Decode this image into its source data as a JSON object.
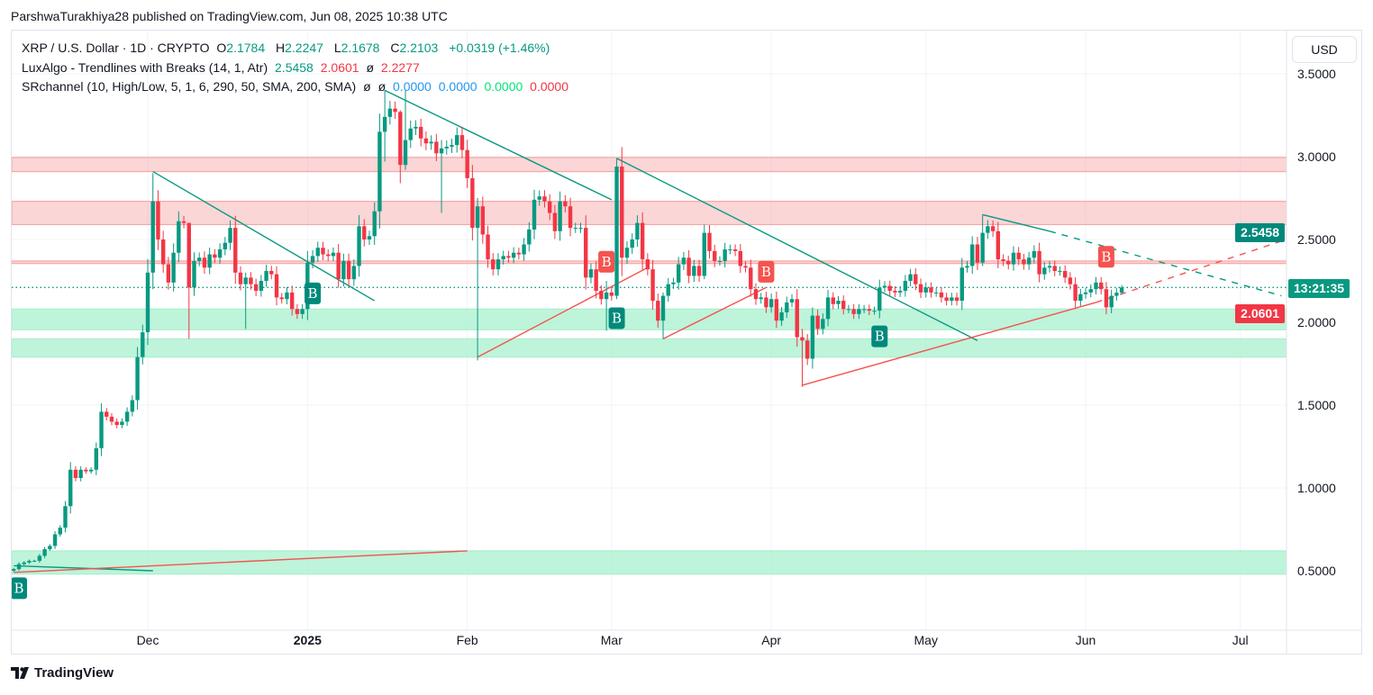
{
  "header": {
    "attribution": "ParshwaTurakhiya28 published on TradingView.com, Jun 08, 2025 10:38 UTC"
  },
  "legend": {
    "symbol": "XRP / U.S. Dollar · 1D · CRYPTO",
    "o_label": "O",
    "o": "2.1784",
    "h_label": "H",
    "h": "2.2247",
    "l_label": "L",
    "l": "2.1678",
    "c_label": "C",
    "c": "2.2103",
    "change": "+0.0319 (+1.46%)"
  },
  "indicators": [
    {
      "name": "LuxAlgo - Trendlines with Breaks (14, 1, Atr)",
      "values": [
        "2.5458",
        "2.0601",
        "ø",
        "2.2277"
      ]
    },
    {
      "name": "SRchannel (10, High/Low, 5, 1, 6, 290, 50, SMA, 200, SMA)",
      "values": [
        "ø",
        "ø",
        "0.0000",
        "0.0000",
        "0.0000",
        "0.0000"
      ]
    }
  ],
  "price_axis": {
    "currency_button": "USD",
    "upper_trendline_label": "2.5458",
    "countdown_label": "13:21:35",
    "lower_trendline_label": "2.0601"
  },
  "footer": {
    "brand": "TradingView"
  },
  "colors": {
    "bull": "#089981",
    "bear": "#f23645",
    "resistance_zone": "#f7a5a5",
    "support_zone": "#a8f0cd",
    "grid": "#f0f3fa",
    "upper_label": "#00897b"
  },
  "chart_data": {
    "type": "candlestick",
    "title": "XRP / U.S. Dollar · 1D · CRYPTO",
    "start_date": "2024-11-05",
    "first_open": 0.5,
    "close": [
      0.51,
      0.54,
      0.55,
      0.56,
      0.56,
      0.59,
      0.63,
      0.65,
      0.72,
      0.76,
      0.89,
      1.11,
      1.06,
      1.11,
      1.1,
      1.11,
      1.24,
      1.46,
      1.43,
      1.4,
      1.38,
      1.4,
      1.46,
      1.53,
      1.79,
      1.94,
      2.3,
      2.73,
      2.5,
      2.35,
      2.24,
      2.42,
      2.61,
      2.6,
      2.21,
      2.37,
      2.39,
      2.33,
      2.41,
      2.39,
      2.44,
      2.48,
      2.57,
      2.3,
      2.23,
      2.27,
      2.23,
      2.19,
      2.25,
      2.31,
      2.29,
      2.15,
      2.14,
      2.18,
      2.08,
      2.05,
      2.08,
      2.36,
      2.4,
      2.45,
      2.41,
      2.4,
      2.42,
      2.26,
      2.37,
      2.26,
      2.34,
      2.58,
      2.5,
      2.52,
      2.67,
      3.15,
      3.24,
      3.29,
      3.27,
      2.95,
      3.1,
      3.17,
      3.18,
      3.11,
      3.08,
      3.09,
      3.02,
      3.05,
      3.06,
      3.07,
      3.13,
      3.04,
      2.87,
      2.57,
      2.7,
      2.53,
      2.38,
      2.32,
      2.38,
      2.4,
      2.39,
      2.42,
      2.41,
      2.47,
      2.56,
      2.74,
      2.76,
      2.73,
      2.66,
      2.55,
      2.73,
      2.7,
      2.57,
      2.57,
      2.57,
      2.27,
      2.32,
      2.19,
      2.14,
      2.18,
      2.16,
      2.94,
      2.39,
      2.45,
      2.5,
      2.6,
      2.38,
      2.32,
      2.13,
      2.01,
      2.16,
      2.23,
      2.24,
      2.35,
      2.39,
      2.28,
      2.34,
      2.28,
      2.54,
      2.43,
      2.37,
      2.37,
      2.44,
      2.44,
      2.43,
      2.34,
      2.33,
      2.2,
      2.14,
      2.15,
      2.09,
      2.14,
      2.01,
      2.06,
      2.12,
      2.14,
      1.91,
      1.89,
      1.78,
      2.04,
      1.96,
      2.02,
      2.15,
      2.11,
      2.13,
      2.08,
      2.08,
      2.05,
      2.08,
      2.08,
      2.07,
      2.07,
      2.21,
      2.22,
      2.19,
      2.18,
      2.19,
      2.25,
      2.29,
      2.23,
      2.18,
      2.21,
      2.18,
      2.18,
      2.15,
      2.13,
      2.15,
      2.13,
      2.33,
      2.34,
      2.47,
      2.36,
      2.54,
      2.58,
      2.55,
      2.38,
      2.37,
      2.35,
      2.42,
      2.38,
      2.35,
      2.39,
      2.43,
      2.29,
      2.33,
      2.34,
      2.31,
      2.31,
      2.27,
      2.23,
      2.13,
      2.17,
      2.18,
      2.2,
      2.24,
      2.2,
      2.09,
      2.16,
      2.1784,
      2.2103
    ],
    "wick_extremes": {
      "2024-12-02": [
        2.9,
        2.2
      ],
      "2024-12-09": [
        2.6,
        1.9
      ],
      "2024-12-20": [
        2.3,
        1.96
      ],
      "2025-01-16": [
        3.4,
        2.97
      ],
      "2025-01-19": [
        3.28,
        2.84
      ],
      "2025-01-20": [
        3.4,
        2.92
      ],
      "2025-01-27": [
        3.1,
        2.66
      ],
      "2025-02-03": [
        2.75,
        1.77
      ],
      "2025-02-28": [
        2.25,
        1.95
      ],
      "2025-03-02": [
        2.99,
        2.14
      ],
      "2025-03-11": [
        2.18,
        1.9
      ],
      "2025-03-19": [
        2.59,
        2.26
      ],
      "2025-04-07": [
        1.96,
        1.61
      ],
      "2025-04-09": [
        2.09,
        1.72
      ],
      "2025-05-12": [
        2.65,
        2.34
      ],
      "2025-06-08": [
        2.2247,
        2.1678
      ]
    },
    "last_price": 2.2103,
    "y_ticks": [
      {
        "value": 3.5,
        "label": "3.5000"
      },
      {
        "value": 3.0,
        "label": "3.0000"
      },
      {
        "value": 2.5,
        "label": "2.5000"
      },
      {
        "value": 2.0,
        "label": "2.0000"
      },
      {
        "value": 1.5,
        "label": "1.5000"
      },
      {
        "value": 1.0,
        "label": "1.0000"
      },
      {
        "value": 0.5,
        "label": "0.5000"
      }
    ],
    "x_ticks": [
      {
        "date": "2024-12-01",
        "label": "Dec"
      },
      {
        "date": "2025-01-01",
        "label": "2025",
        "bold": true
      },
      {
        "date": "2025-02-01",
        "label": "Feb"
      },
      {
        "date": "2025-03-01",
        "label": "Mar"
      },
      {
        "date": "2025-04-01",
        "label": "Apr"
      },
      {
        "date": "2025-05-01",
        "label": "May"
      },
      {
        "date": "2025-06-01",
        "label": "Jun"
      },
      {
        "date": "2025-07-01",
        "label": "Jul"
      }
    ],
    "sr_zones": [
      {
        "top": 2.995,
        "bottom": 2.91,
        "kind": "resistance"
      },
      {
        "top": 2.73,
        "bottom": 2.59,
        "kind": "resistance"
      },
      {
        "top": 2.37,
        "bottom": 2.355,
        "kind": "resistance"
      },
      {
        "top": 2.08,
        "bottom": 1.955,
        "kind": "support"
      },
      {
        "top": 1.9,
        "bottom": 1.79,
        "kind": "support"
      },
      {
        "top": 0.62,
        "bottom": 0.48,
        "kind": "support"
      }
    ],
    "trendlines": [
      {
        "from": [
          "2024-11-05",
          0.53
        ],
        "to": [
          "2024-12-02",
          0.5
        ],
        "kind": "bull",
        "style": "solid"
      },
      {
        "from": [
          "2024-12-02",
          2.91
        ],
        "to": [
          "2025-01-14",
          2.13
        ],
        "kind": "bull",
        "style": "solid"
      },
      {
        "from": [
          "2025-01-16",
          3.4
        ],
        "to": [
          "2025-03-01",
          2.74
        ],
        "kind": "bull",
        "style": "solid"
      },
      {
        "from": [
          "2025-03-02",
          2.99
        ],
        "to": [
          "2025-05-11",
          1.89
        ],
        "kind": "bull",
        "style": "solid"
      },
      {
        "from": [
          "2025-05-12",
          2.65
        ],
        "to": [
          "2025-05-25",
          2.55
        ],
        "kind": "bull",
        "style": "solid"
      },
      {
        "from": [
          "2025-05-25",
          2.55
        ],
        "to": [
          "2025-07-09",
          2.16
        ],
        "kind": "bull",
        "style": "dashed"
      },
      {
        "from": [
          "2024-11-05",
          0.49
        ],
        "to": [
          "2025-02-01",
          0.62
        ],
        "kind": "bear",
        "style": "solid"
      },
      {
        "from": [
          "2025-02-03",
          1.79
        ],
        "to": [
          "2025-03-08",
          2.33
        ],
        "kind": "bear",
        "style": "solid"
      },
      {
        "from": [
          "2025-03-11",
          1.9
        ],
        "to": [
          "2025-03-31",
          2.21
        ],
        "kind": "bear",
        "style": "solid"
      },
      {
        "from": [
          "2025-04-07",
          1.62
        ],
        "to": [
          "2025-06-03",
          2.12
        ],
        "kind": "bear",
        "style": "solid"
      },
      {
        "from": [
          "2025-06-03",
          2.12
        ],
        "to": [
          "2025-07-09",
          2.49
        ],
        "kind": "bear",
        "style": "dashed"
      }
    ],
    "break_labels": [
      {
        "date": "2024-11-06",
        "price": 0.46,
        "text": "B",
        "kind": "bull"
      },
      {
        "date": "2025-01-02",
        "price": 2.24,
        "text": "B",
        "kind": "bull"
      },
      {
        "date": "2025-03-02",
        "price": 2.09,
        "text": "B",
        "kind": "bull"
      },
      {
        "date": "2025-04-22",
        "price": 1.98,
        "text": "B",
        "kind": "bull"
      },
      {
        "date": "2025-02-28",
        "price": 2.3,
        "text": "B",
        "kind": "bear"
      },
      {
        "date": "2025-03-31",
        "price": 2.24,
        "text": "B",
        "kind": "bear"
      },
      {
        "date": "2025-06-05",
        "price": 2.33,
        "text": "B",
        "kind": "bear"
      }
    ]
  }
}
